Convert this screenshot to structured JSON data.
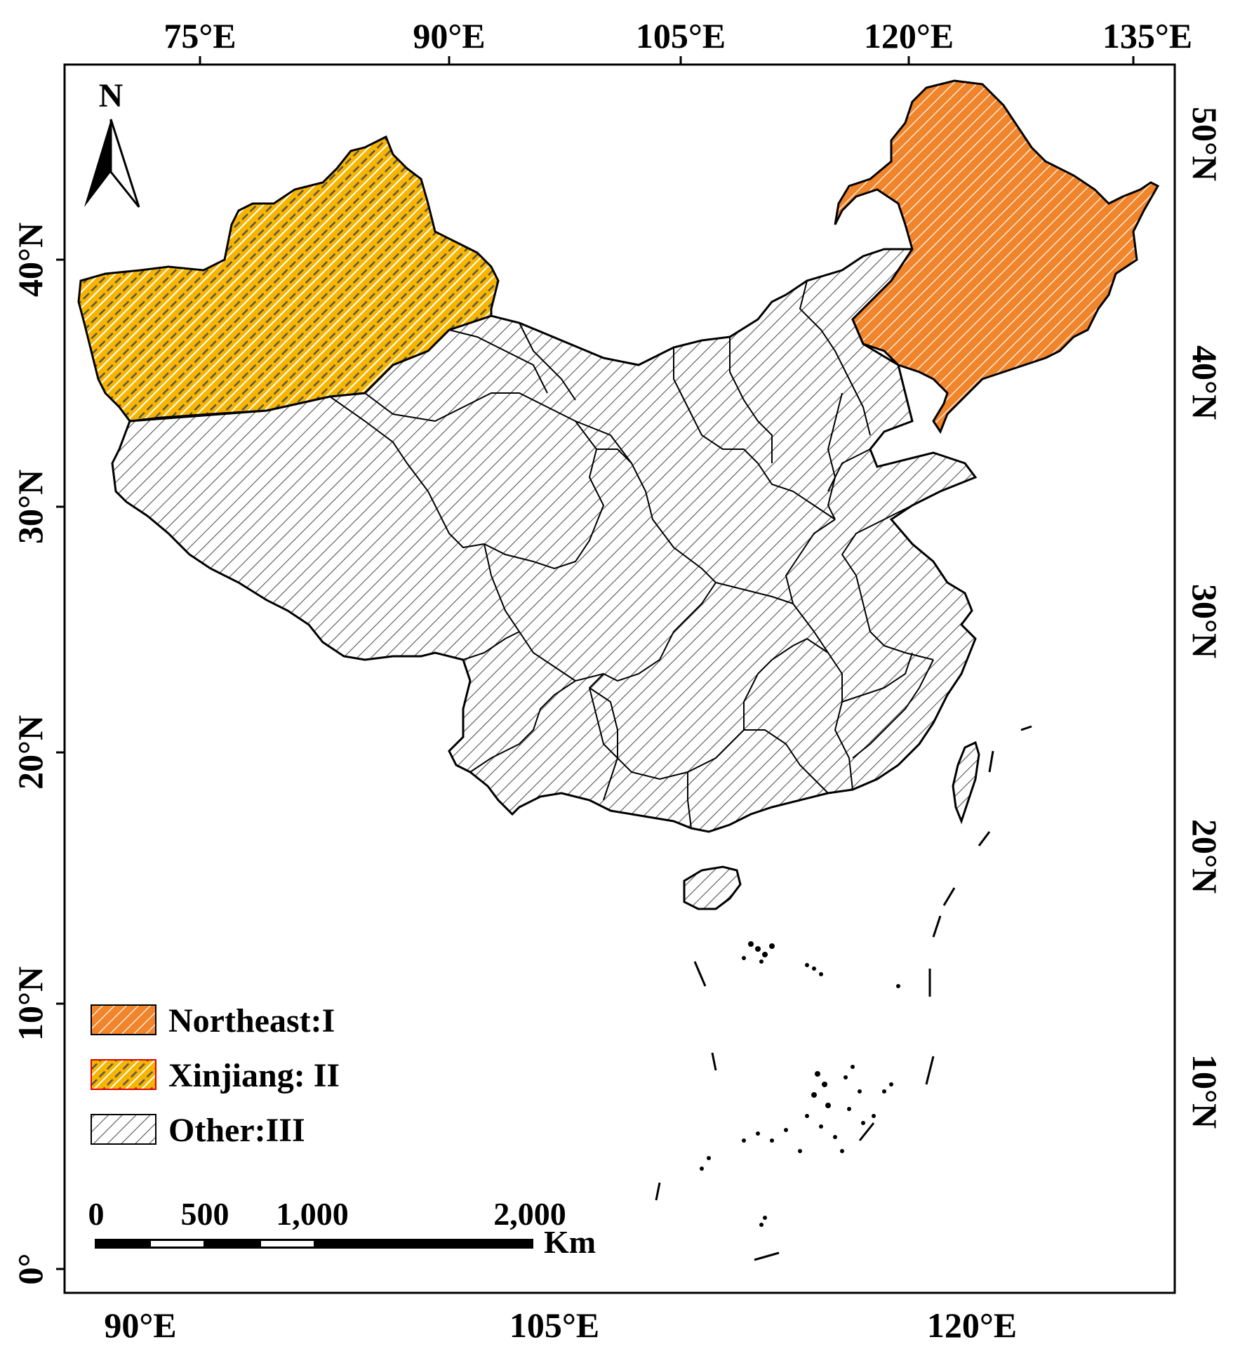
{
  "map": {
    "top_lon_labels": [
      "75°E",
      "90°E",
      "105°E",
      "120°E",
      "135°E"
    ],
    "bottom_lon_labels": [
      "90°E",
      "105°E",
      "120°E"
    ],
    "left_lat_labels": [
      "40°N",
      "30°N",
      "20°N",
      "10°N",
      "0°"
    ],
    "right_lat_labels": [
      "50°N",
      "40°N",
      "30°N",
      "20°N",
      "10°N"
    ],
    "north_arrow_label": "N",
    "colors": {
      "northeast": "#F0852B",
      "xinjiang": "#F7B500",
      "other": "#E8E8E8",
      "outline": "#000000"
    },
    "legend": [
      {
        "key": "northeast",
        "label": "Northeast:I"
      },
      {
        "key": "xinjiang",
        "label": "Xinjiang: II"
      },
      {
        "key": "other",
        "label": "Other:III"
      }
    ],
    "scale_bar": {
      "labels": [
        "0",
        "500",
        "1,000",
        "2,000"
      ],
      "unit": "Km"
    }
  }
}
